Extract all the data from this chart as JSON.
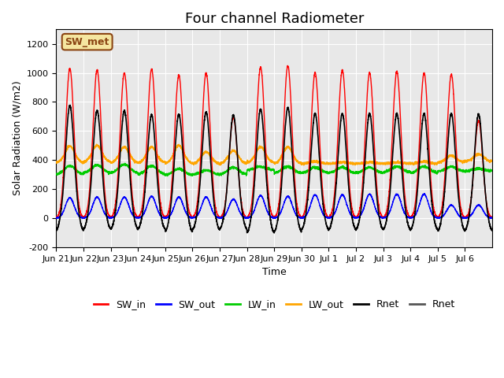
{
  "title": "Four channel Radiometer",
  "xlabel": "Time",
  "ylabel": "Solar Radiation (W/m2)",
  "ylim": [
    -200,
    1300
  ],
  "yticks": [
    -200,
    0,
    200,
    400,
    600,
    800,
    1000,
    1200
  ],
  "background_color": "#ffffff",
  "plot_bg_color": "#e8e8e8",
  "annotation_text": "SW_met",
  "annotation_bg": "#f5e6a0",
  "annotation_border": "#8B4513",
  "legend_entries": [
    {
      "label": "SW_in",
      "color": "#ff0000"
    },
    {
      "label": "SW_out",
      "color": "#0000ff"
    },
    {
      "label": "LW_in",
      "color": "#00cc00"
    },
    {
      "label": "LW_out",
      "color": "#ffa500"
    },
    {
      "label": "Rnet",
      "color": "#000000"
    },
    {
      "label": "Rnet",
      "color": "#555555"
    }
  ],
  "n_days": 16,
  "points_per_day": 288,
  "xtick_labels": [
    "Jun 21",
    "Jun 22",
    "Jun 23",
    "Jun 24",
    "Jun 25",
    "Jun 26",
    "Jun 27",
    "Jun 28",
    "Jun 29",
    "Jun 30",
    "Jul 1",
    "Jul 2",
    "Jul 3",
    "Jul 4",
    "Jul 5",
    "Jul 6"
  ],
  "SW_in_peaks": [
    1030,
    1020,
    1000,
    1025,
    985,
    1000,
    695,
    1040,
    1050,
    1000,
    1020,
    1000,
    1010,
    1000,
    990,
    670
  ],
  "SW_out_peaks": [
    140,
    145,
    145,
    150,
    145,
    145,
    130,
    155,
    150,
    160,
    160,
    165,
    165,
    165,
    90,
    90
  ],
  "LW_in_base": [
    300,
    310,
    310,
    300,
    295,
    300,
    300,
    330,
    310,
    310,
    310,
    310,
    315,
    310,
    320,
    325
  ],
  "LW_in_peaks": [
    360,
    365,
    370,
    360,
    340,
    330,
    350,
    355,
    355,
    350,
    350,
    350,
    355,
    355,
    355,
    340
  ],
  "LW_out_base": [
    380,
    385,
    380,
    380,
    375,
    375,
    375,
    380,
    375,
    375,
    375,
    375,
    375,
    375,
    385,
    390
  ],
  "LW_out_peaks": [
    495,
    500,
    490,
    490,
    500,
    455,
    465,
    490,
    490,
    390,
    385,
    385,
    385,
    390,
    430,
    440
  ],
  "Rnet_peaks": [
    775,
    740,
    740,
    710,
    715,
    730,
    710,
    750,
    760,
    720,
    720,
    720,
    720,
    720,
    720,
    715
  ],
  "Rnet_min": [
    -100,
    -90,
    -90,
    -90,
    -110,
    -95,
    -90,
    -120,
    -110,
    -95,
    -95,
    -95,
    -95,
    -95,
    -105,
    -100
  ],
  "title_fontsize": 13,
  "axis_fontsize": 9,
  "tick_fontsize": 8
}
